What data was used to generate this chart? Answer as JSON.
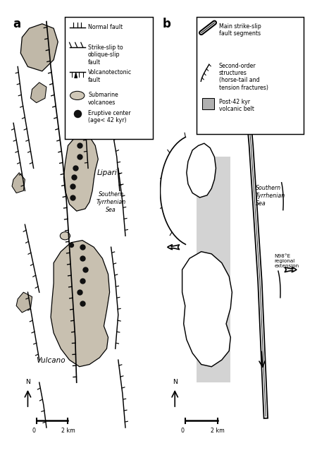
{
  "bg_color": "#ffffff",
  "fig_width": 2.89,
  "fig_height": 4.35,
  "panel_a_label": "a",
  "panel_b_label": "b",
  "legend_a": {
    "normal_fault": "Normal fault",
    "strike_slip": "Strike-slip to\noblique-slip\nfault",
    "volcanotectonic": "Volcanotectonic\nfault",
    "submarine": "Submarine\nvolcanoes",
    "eruptive": "Eruptive center\n(age< 42 kyr)"
  },
  "legend_b": {
    "main_fault": "Main strike-slip\nfault segments",
    "second_order": "Second-order\nstructures\n(horse-tail and\ntension fractures)",
    "post42": "Post-42 kyr\nvolcanic belt"
  },
  "colors": {
    "land_a": "#c8c0b0",
    "island_top": "#c0b8a8",
    "submarine_fill": "#d0c8b8",
    "grey_belt": "#b0b0b0",
    "eruptive_fill": "#111111"
  }
}
